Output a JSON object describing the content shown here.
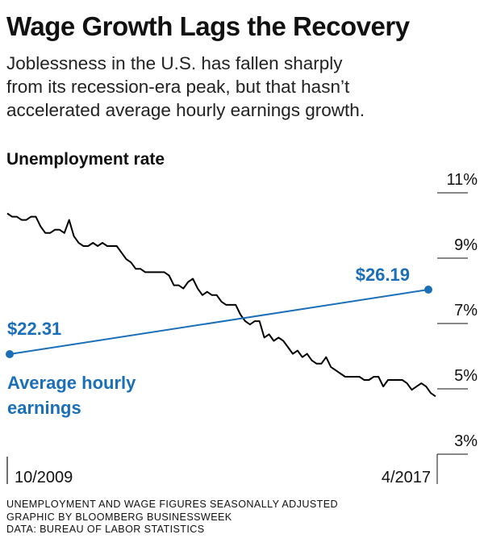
{
  "header": {
    "title": "Wage Growth Lags the Recovery",
    "subtitle_lines": [
      "Joblessness in the U.S. has fallen sharply",
      "from its recession-era peak, but that hasn’t",
      "accelerated average hourly earnings growth."
    ]
  },
  "chart_data": {
    "type": "line",
    "section_label": "Unemployment rate",
    "x_tick_labels": [
      "10/2009",
      "4/2017"
    ],
    "x_range": [
      "2009-10",
      "2017-04"
    ],
    "y_range": [
      3,
      11
    ],
    "y_tick_labels": [
      "11%",
      "9%",
      "7%",
      "5%",
      "3%"
    ],
    "y_ticks": [
      11,
      9,
      7,
      5,
      3
    ],
    "grid": false,
    "series": [
      {
        "name": "Unemployment rate",
        "color": "#000000",
        "axis": "percent",
        "points": [
          [
            "2009-10",
            10.0
          ],
          [
            "2009-11",
            9.9
          ],
          [
            "2009-12",
            9.9
          ],
          [
            "2010-01",
            9.8
          ],
          [
            "2010-02",
            9.8
          ],
          [
            "2010-03",
            9.9
          ],
          [
            "2010-04",
            9.9
          ],
          [
            "2010-05",
            9.6
          ],
          [
            "2010-06",
            9.4
          ],
          [
            "2010-07",
            9.4
          ],
          [
            "2010-08",
            9.5
          ],
          [
            "2010-09",
            9.5
          ],
          [
            "2010-10",
            9.4
          ],
          [
            "2010-11",
            9.8
          ],
          [
            "2010-12",
            9.3
          ],
          [
            "2011-01",
            9.1
          ],
          [
            "2011-02",
            9.0
          ],
          [
            "2011-03",
            9.0
          ],
          [
            "2011-04",
            9.1
          ],
          [
            "2011-05",
            9.0
          ],
          [
            "2011-06",
            9.1
          ],
          [
            "2011-07",
            9.0
          ],
          [
            "2011-08",
            9.0
          ],
          [
            "2011-09",
            9.0
          ],
          [
            "2011-10",
            8.8
          ],
          [
            "2011-11",
            8.6
          ],
          [
            "2011-12",
            8.5
          ],
          [
            "2012-01",
            8.3
          ],
          [
            "2012-02",
            8.3
          ],
          [
            "2012-03",
            8.2
          ],
          [
            "2012-04",
            8.2
          ],
          [
            "2012-05",
            8.2
          ],
          [
            "2012-06",
            8.2
          ],
          [
            "2012-07",
            8.2
          ],
          [
            "2012-08",
            8.1
          ],
          [
            "2012-09",
            7.8
          ],
          [
            "2012-10",
            7.8
          ],
          [
            "2012-11",
            7.7
          ],
          [
            "2012-12",
            7.9
          ],
          [
            "2013-01",
            8.0
          ],
          [
            "2013-02",
            7.7
          ],
          [
            "2013-03",
            7.5
          ],
          [
            "2013-04",
            7.6
          ],
          [
            "2013-05",
            7.5
          ],
          [
            "2013-06",
            7.5
          ],
          [
            "2013-07",
            7.3
          ],
          [
            "2013-08",
            7.2
          ],
          [
            "2013-09",
            7.2
          ],
          [
            "2013-10",
            7.2
          ],
          [
            "2013-11",
            6.9
          ],
          [
            "2013-12",
            6.7
          ],
          [
            "2014-01",
            6.6
          ],
          [
            "2014-02",
            6.7
          ],
          [
            "2014-03",
            6.7
          ],
          [
            "2014-04",
            6.2
          ],
          [
            "2014-05",
            6.3
          ],
          [
            "2014-06",
            6.1
          ],
          [
            "2014-07",
            6.2
          ],
          [
            "2014-08",
            6.1
          ],
          [
            "2014-09",
            5.9
          ],
          [
            "2014-10",
            5.7
          ],
          [
            "2014-11",
            5.8
          ],
          [
            "2014-12",
            5.6
          ],
          [
            "2015-01",
            5.7
          ],
          [
            "2015-02",
            5.5
          ],
          [
            "2015-03",
            5.4
          ],
          [
            "2015-04",
            5.4
          ],
          [
            "2015-05",
            5.6
          ],
          [
            "2015-06",
            5.3
          ],
          [
            "2015-07",
            5.2
          ],
          [
            "2015-08",
            5.1
          ],
          [
            "2015-09",
            5.0
          ],
          [
            "2015-10",
            5.0
          ],
          [
            "2015-11",
            5.0
          ],
          [
            "2015-12",
            5.0
          ],
          [
            "2016-01",
            4.9
          ],
          [
            "2016-02",
            4.9
          ],
          [
            "2016-03",
            5.0
          ],
          [
            "2016-04",
            5.0
          ],
          [
            "2016-05",
            4.7
          ],
          [
            "2016-06",
            4.9
          ],
          [
            "2016-07",
            4.9
          ],
          [
            "2016-08",
            4.9
          ],
          [
            "2016-09",
            4.9
          ],
          [
            "2016-10",
            4.8
          ],
          [
            "2016-11",
            4.6
          ],
          [
            "2016-12",
            4.7
          ],
          [
            "2017-01",
            4.8
          ],
          [
            "2017-02",
            4.7
          ],
          [
            "2017-03",
            4.5
          ],
          [
            "2017-04",
            4.4
          ]
        ]
      },
      {
        "name": "Average hourly earnings",
        "label_lines": [
          "Average hourly",
          "earnings"
        ],
        "color": "#1a6fb8",
        "axis": "dollars",
        "points": [
          [
            "2009-10",
            22.31
          ],
          [
            "2017-04",
            26.19
          ]
        ],
        "start_label": "$22.31",
        "end_label": "$26.19"
      }
    ]
  },
  "footer": {
    "lines": [
      "UNEMPLOYMENT AND WAGE FIGURES SEASONALLY ADJUSTED",
      "GRAPHIC BY BLOOMBERG BUSINESSWEEK",
      "DATA: BUREAU OF LABOR STATISTICS"
    ]
  }
}
